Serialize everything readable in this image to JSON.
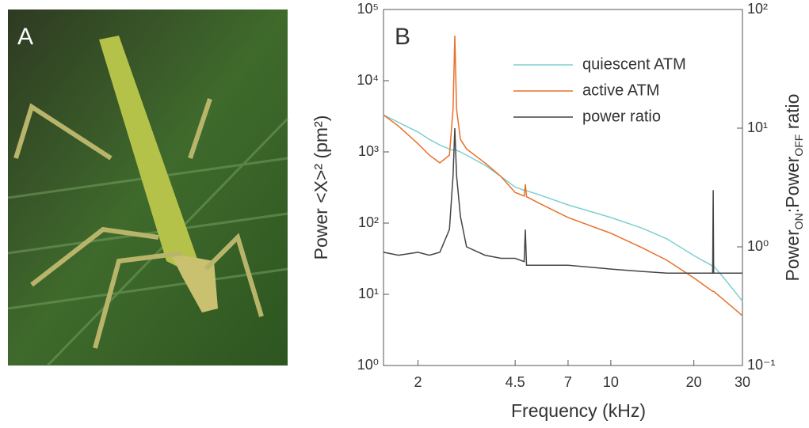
{
  "panel_labels": [
    "A",
    "B"
  ],
  "chart_data": {
    "type": "line",
    "x_label": "Frequency (kHz)",
    "y_label": "Power <X>² (pm²)",
    "y2_label": [
      "Power",
      "ON",
      ":Power",
      "OFF",
      " ratio"
    ],
    "xscale": "log",
    "yscale": "log",
    "y2scale": "log",
    "xlim": [
      1.5,
      30
    ],
    "xticks": [
      2,
      4.5,
      7,
      10,
      20,
      30
    ],
    "ylim": [
      1,
      100000
    ],
    "yticks": [
      {
        "value": 1,
        "label": "10⁰"
      },
      {
        "value": 10,
        "label": "10¹"
      },
      {
        "value": 100,
        "label": "10²"
      },
      {
        "value": 1000,
        "label": "10³"
      },
      {
        "value": 10000,
        "label": "10⁴"
      },
      {
        "value": 100000,
        "label": "10⁵"
      }
    ],
    "y2lim": [
      0.1,
      100
    ],
    "y2ticks": [
      {
        "value": 0.1,
        "label": "10⁻¹"
      },
      {
        "value": 1,
        "label": "10⁰"
      },
      {
        "value": 10,
        "label": "10¹"
      },
      {
        "value": 100,
        "label": "10²"
      }
    ],
    "legend": "upper right",
    "x": [
      1.5,
      1.7,
      2.0,
      2.2,
      2.4,
      2.6,
      2.68,
      2.72,
      2.76,
      2.85,
      3.0,
      3.5,
      4.0,
      4.5,
      4.85,
      4.9,
      4.95,
      5.5,
      7,
      10,
      13,
      16,
      20,
      23.4,
      23.5,
      23.6,
      26,
      30
    ],
    "series": [
      {
        "name": "quiescent ATM",
        "color": "#7fcfd0",
        "values": [
          3300,
          2600,
          1900,
          1500,
          1250,
          1100,
          1050,
          1100,
          1050,
          1000,
          900,
          650,
          450,
          320,
          290,
          300,
          285,
          250,
          180,
          120,
          85,
          60,
          35,
          25,
          25,
          25,
          16,
          8
        ]
      },
      {
        "name": "active ATM",
        "color": "#e8702a",
        "values": [
          3300,
          2300,
          1300,
          900,
          700,
          900,
          4000,
          43000,
          4000,
          1500,
          1100,
          700,
          450,
          270,
          240,
          350,
          235,
          190,
          120,
          72,
          45,
          30,
          17,
          11,
          11,
          11,
          8,
          5
        ]
      },
      {
        "name": "power ratio",
        "color": "#444444",
        "axis": "y2",
        "values": [
          0.9,
          0.85,
          0.9,
          0.85,
          0.9,
          1.4,
          4,
          10,
          4,
          1.8,
          1.0,
          0.85,
          0.8,
          0.8,
          0.75,
          1.4,
          0.7,
          0.7,
          0.7,
          0.65,
          0.62,
          0.6,
          0.6,
          0.6,
          3,
          0.6,
          0.6,
          0.6
        ]
      }
    ]
  }
}
